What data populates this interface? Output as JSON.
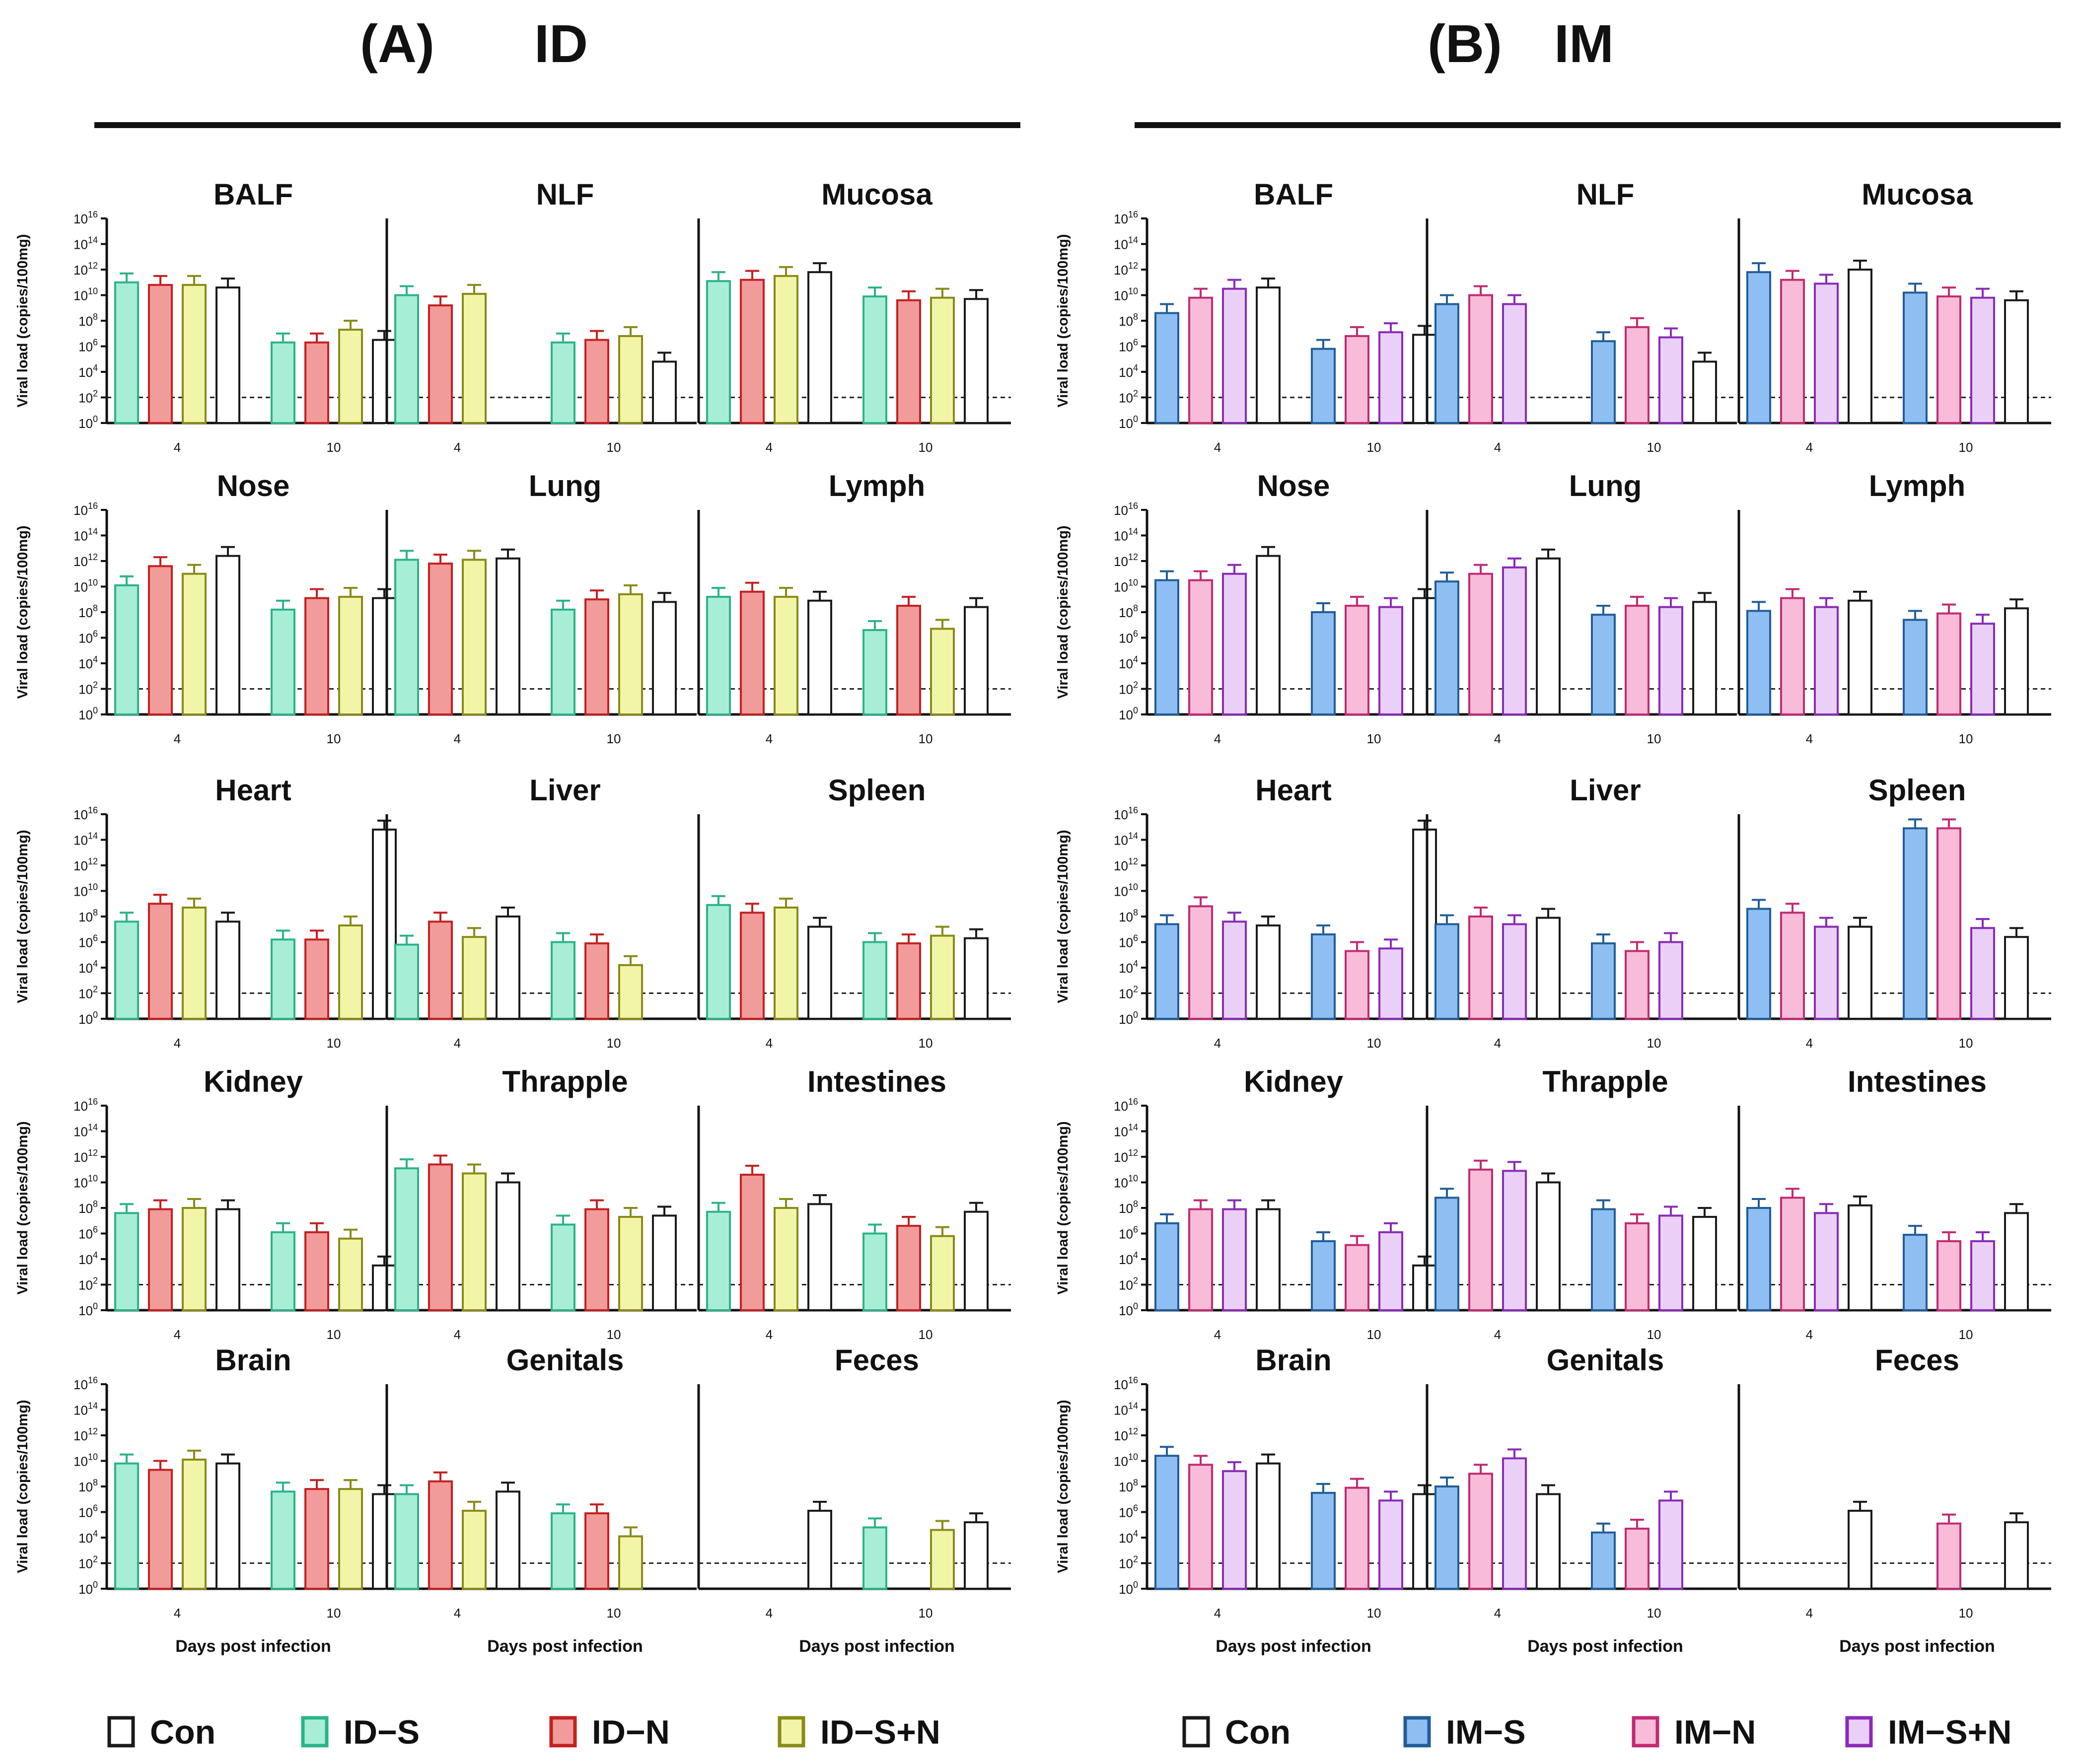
{
  "figure": {
    "panels": [
      {
        "id": "A",
        "letter": "(A)",
        "title": "ID"
      },
      {
        "id": "B",
        "letter": "(B)",
        "title": "IM"
      }
    ],
    "y_axis_label": "Viral load (copies/100mg)",
    "x_axis_label": "Days post infection",
    "day_labels": [
      "4",
      "10"
    ],
    "y_ticks": [
      {
        "base": "10",
        "exp": "0"
      },
      {
        "base": "10",
        "exp": "2"
      },
      {
        "base": "10",
        "exp": "4"
      },
      {
        "base": "10",
        "exp": "6"
      },
      {
        "base": "10",
        "exp": "8"
      },
      {
        "base": "10",
        "exp": "10"
      },
      {
        "base": "10",
        "exp": "12"
      },
      {
        "base": "10",
        "exp": "14"
      },
      {
        "base": "10",
        "exp": "16"
      }
    ],
    "detection_limit_log10": 2,
    "legends": {
      "A": [
        {
          "label": "Con",
          "fill": "#ffffff",
          "stroke": "#1a1a1a"
        },
        {
          "label": "ID−S",
          "fill": "#a8eed6",
          "stroke": "#2bb38a"
        },
        {
          "label": "ID−N",
          "fill": "#f29b9b",
          "stroke": "#c42020"
        },
        {
          "label": "ID−S+N",
          "fill": "#f2f5a8",
          "stroke": "#8a8a18"
        }
      ],
      "B": [
        {
          "label": "Con",
          "fill": "#ffffff",
          "stroke": "#1a1a1a"
        },
        {
          "label": "IM−S",
          "fill": "#8fbff2",
          "stroke": "#215d98"
        },
        {
          "label": "IM−N",
          "fill": "#f8bcd8",
          "stroke": "#c22a72"
        },
        {
          "label": "IM−S+N",
          "fill": "#ead0f6",
          "stroke": "#8a2ab8"
        }
      ]
    }
  },
  "chart_data": [
    {
      "panel": "A",
      "type": "bar",
      "yscale": "log10",
      "ylim": [
        0,
        16
      ],
      "series_order": [
        "ID−S",
        "ID−N",
        "ID−S+N",
        "Con"
      ],
      "organs": [
        {
          "name": "BALF",
          "day4": [
            11,
            10.8,
            10.8,
            10.6
          ],
          "day10": [
            6.3,
            6.3,
            7.3,
            6.5
          ]
        },
        {
          "name": "NLF",
          "day4": [
            10,
            9.2,
            10.1,
            null
          ],
          "day10": [
            6.3,
            6.5,
            6.8,
            4.8
          ]
        },
        {
          "name": "Mucosa",
          "day4": [
            11.1,
            11.2,
            11.5,
            11.8
          ],
          "day10": [
            9.9,
            9.6,
            9.8,
            9.7
          ]
        },
        {
          "name": "Nose",
          "day4": [
            10.1,
            11.6,
            11,
            12.4
          ],
          "day10": [
            8.2,
            9.1,
            9.2,
            9.1
          ]
        },
        {
          "name": "Lung",
          "day4": [
            12.1,
            11.8,
            12.1,
            12.2
          ],
          "day10": [
            8.2,
            9,
            9.4,
            8.8
          ]
        },
        {
          "name": "Lymph",
          "day4": [
            9.2,
            9.6,
            9.2,
            8.9
          ],
          "day10": [
            6.6,
            8.5,
            6.7,
            8.4
          ]
        },
        {
          "name": "Heart",
          "day4": [
            7.6,
            9,
            8.7,
            7.6
          ],
          "day10": [
            6.2,
            6.2,
            7.3,
            14.8
          ]
        },
        {
          "name": "Liver",
          "day4": [
            5.8,
            7.6,
            6.4,
            8
          ],
          "day10": [
            6,
            5.9,
            4.2,
            null
          ]
        },
        {
          "name": "Spleen",
          "day4": [
            8.9,
            8.3,
            8.7,
            7.2
          ],
          "day10": [
            6,
            5.9,
            6.5,
            6.3
          ]
        },
        {
          "name": "Kidney",
          "day4": [
            7.6,
            7.9,
            8,
            7.9
          ],
          "day10": [
            6.1,
            6.1,
            5.6,
            3.5
          ]
        },
        {
          "name": "Thrapple",
          "day4": [
            11.1,
            11.4,
            10.7,
            10
          ],
          "day10": [
            6.7,
            7.9,
            7.3,
            7.4
          ]
        },
        {
          "name": "Intestines",
          "day4": [
            7.7,
            10.6,
            8,
            8.3
          ],
          "day10": [
            6,
            6.6,
            5.8,
            7.7
          ]
        },
        {
          "name": "Brain",
          "day4": [
            9.8,
            9.3,
            10.1,
            9.8
          ],
          "day10": [
            7.6,
            7.8,
            7.8,
            7.4
          ]
        },
        {
          "name": "Genitals",
          "day4": [
            7.4,
            8.4,
            6.1,
            7.6
          ],
          "day10": [
            5.9,
            5.9,
            4.1,
            null
          ]
        },
        {
          "name": "Feces",
          "day4": [
            null,
            null,
            null,
            6.1
          ],
          "day10": [
            4.8,
            null,
            4.6,
            5.2
          ]
        }
      ]
    },
    {
      "panel": "B",
      "type": "bar",
      "yscale": "log10",
      "ylim": [
        0,
        16
      ],
      "series_order": [
        "IM−S",
        "IM−N",
        "IM−S+N",
        "Con"
      ],
      "organs": [
        {
          "name": "BALF",
          "day4": [
            8.6,
            9.8,
            10.5,
            10.6
          ],
          "day10": [
            5.8,
            6.8,
            7.1,
            6.9
          ]
        },
        {
          "name": "NLF",
          "day4": [
            9.3,
            10,
            9.3,
            null
          ],
          "day10": [
            6.4,
            7.5,
            6.7,
            4.8
          ]
        },
        {
          "name": "Mucosa",
          "day4": [
            11.8,
            11.2,
            10.9,
            12
          ],
          "day10": [
            10.2,
            9.9,
            9.8,
            9.6
          ]
        },
        {
          "name": "Nose",
          "day4": [
            10.5,
            10.5,
            11,
            12.4
          ],
          "day10": [
            8,
            8.5,
            8.4,
            9.1
          ]
        },
        {
          "name": "Lung",
          "day4": [
            10.4,
            11,
            11.5,
            12.2
          ],
          "day10": [
            7.8,
            8.5,
            8.4,
            8.8
          ]
        },
        {
          "name": "Lymph",
          "day4": [
            8.1,
            9.1,
            8.4,
            8.9
          ],
          "day10": [
            7.4,
            7.9,
            7.1,
            8.3
          ]
        },
        {
          "name": "Heart",
          "day4": [
            7.4,
            8.8,
            7.6,
            7.3
          ],
          "day10": [
            6.6,
            5.3,
            5.5,
            14.8
          ]
        },
        {
          "name": "Liver",
          "day4": [
            7.4,
            8,
            7.4,
            7.9
          ],
          "day10": [
            5.9,
            5.3,
            6,
            null
          ]
        },
        {
          "name": "Spleen",
          "day4": [
            8.6,
            8.3,
            7.2,
            7.2
          ],
          "day10": [
            14.9,
            14.9,
            7.1,
            6.4
          ]
        },
        {
          "name": "Kidney",
          "day4": [
            6.8,
            7.9,
            7.9,
            7.9
          ],
          "day10": [
            5.4,
            5.1,
            6.1,
            3.5
          ]
        },
        {
          "name": "Thrapple",
          "day4": [
            8.8,
            11,
            10.9,
            10
          ],
          "day10": [
            7.9,
            6.8,
            7.4,
            7.3
          ]
        },
        {
          "name": "Intestines",
          "day4": [
            8,
            8.8,
            7.6,
            8.2
          ],
          "day10": [
            5.9,
            5.4,
            5.4,
            7.6
          ]
        },
        {
          "name": "Brain",
          "day4": [
            10.4,
            9.7,
            9.2,
            9.8
          ],
          "day10": [
            7.5,
            7.9,
            6.9,
            7.4
          ]
        },
        {
          "name": "Genitals",
          "day4": [
            8,
            9,
            10.2,
            7.4
          ],
          "day10": [
            4.4,
            4.7,
            6.9,
            null
          ]
        },
        {
          "name": "Feces",
          "day4": [
            null,
            null,
            null,
            6.1
          ],
          "day10": [
            null,
            5.1,
            null,
            5.2
          ]
        }
      ]
    }
  ]
}
